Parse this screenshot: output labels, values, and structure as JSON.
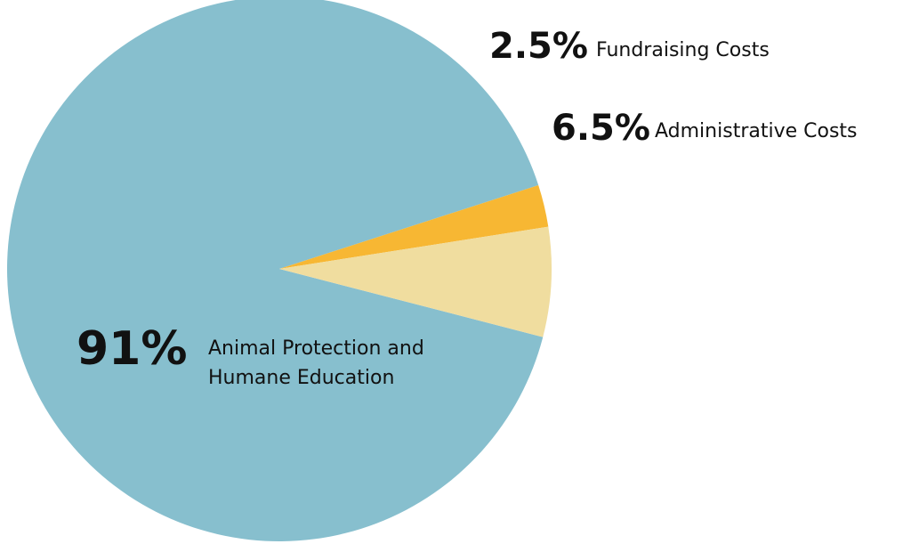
{
  "chart_data": {
    "type": "pie",
    "title": "",
    "legend": "none",
    "slices": [
      {
        "value": 91,
        "percent_text": "91%",
        "label_lines": [
          "Animal Protection and",
          "Humane Education"
        ],
        "color": "#87BFCE"
      },
      {
        "value": 2.5,
        "percent_text": "2.5%",
        "label_lines": [
          "Fundraising Costs"
        ],
        "color": "#F7B733"
      },
      {
        "value": 6.5,
        "percent_text": "6.5%",
        "label_lines": [
          "Administrative Costs"
        ],
        "color": "#F0DD9F"
      }
    ]
  }
}
